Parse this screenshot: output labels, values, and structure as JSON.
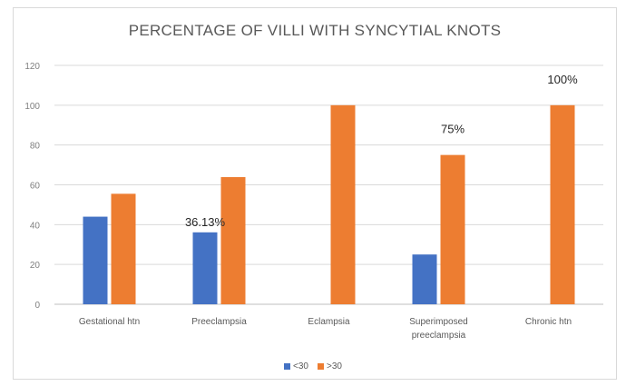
{
  "chart_data": {
    "type": "bar",
    "title": "PERCENTAGE OF VILLI WITH SYNCYTIAL KNOTS",
    "categories": [
      [
        "Gestational htn"
      ],
      [
        "Preeclampsia"
      ],
      [
        "Eclampsia"
      ],
      [
        "Superimposed",
        "preeclampsia"
      ],
      [
        "Chronic htn"
      ]
    ],
    "series": [
      {
        "name": "<30",
        "color": "#4472c4",
        "values": [
          44,
          36.13,
          0,
          25,
          0
        ]
      },
      {
        "name": ">30",
        "color": "#ed7d31",
        "values": [
          55.5,
          63.87,
          100,
          75,
          100
        ]
      }
    ],
    "ylim": [
      0,
      120
    ],
    "yticks": [
      0,
      20,
      40,
      60,
      80,
      100,
      120
    ],
    "grid": true,
    "legend_position": "bottom",
    "data_labels": [
      {
        "text": "36.13%",
        "series": 0,
        "category": 1
      },
      {
        "text": "75%",
        "series": 1,
        "category": 3
      },
      {
        "text": "100%",
        "series": 1,
        "category": 4
      }
    ]
  }
}
